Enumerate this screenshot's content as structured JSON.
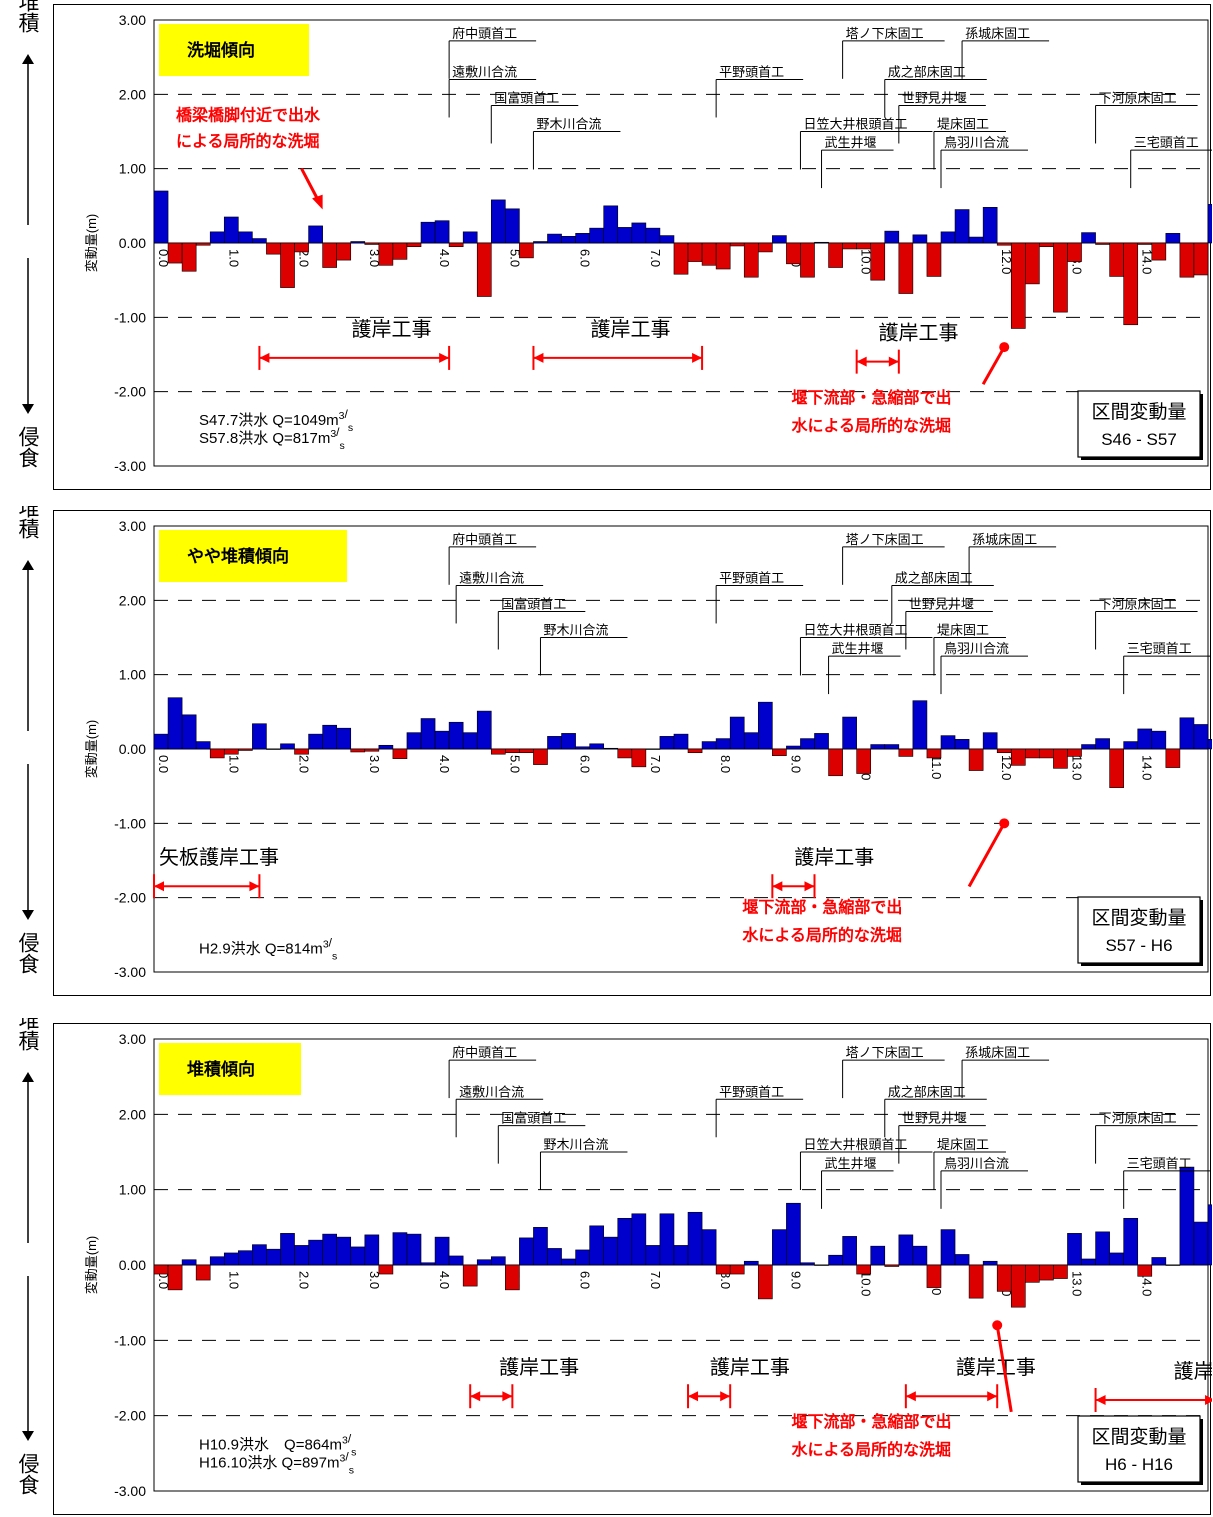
{
  "side_labels": {
    "deposition": "堆積",
    "erosion": "侵食"
  },
  "colors": {
    "positive": "#0000cc",
    "negative": "#dd0000",
    "badge": "#ffff00",
    "annotation": "#ff0000"
  },
  "chart_data": [
    {
      "type": "bar",
      "title": "洗堀傾向",
      "ylabel": "変動量(m)",
      "ylim": [
        -3,
        3
      ],
      "yticks": [
        "3.00",
        "2.00",
        "1.00",
        "0.00",
        "-1.00",
        "-2.00",
        "-3.00"
      ],
      "xlim": [
        0,
        15
      ],
      "xticks": [
        "0.0",
        "1.0",
        "2.0",
        "3.0",
        "4.0",
        "5.0",
        "6.0",
        "7.0",
        "8.0",
        "9.0",
        "10.0",
        "11.0",
        "12.0",
        "13.0",
        "14.0",
        "15.0"
      ],
      "x_start": 0.0,
      "x_step": 0.2,
      "values": [
        0.7,
        -0.27,
        -0.38,
        -0.03,
        0.15,
        0.35,
        0.15,
        0.06,
        -0.15,
        -0.6,
        -0.12,
        0.23,
        -0.33,
        -0.23,
        0.02,
        -0.02,
        -0.3,
        -0.22,
        -0.05,
        0.28,
        0.3,
        -0.05,
        0.15,
        -0.72,
        0.58,
        0.46,
        -0.2,
        0.02,
        0.12,
        0.09,
        0.13,
        0.2,
        0.5,
        0.21,
        0.27,
        0.2,
        0.1,
        -0.42,
        -0.25,
        -0.3,
        -0.35,
        -0.04,
        -0.46,
        -0.12,
        0.1,
        -0.28,
        -0.46,
        0.01,
        -0.33,
        -0.08,
        -0.08,
        -0.5,
        0.16,
        -0.68,
        0.11,
        -0.45,
        0.15,
        0.45,
        0.08,
        0.48,
        -0.03,
        -1.15,
        -0.55,
        -0.05,
        -0.93,
        -0.25,
        0.14,
        -0.02,
        -0.45,
        -1.1,
        -0.02,
        -0.23,
        0.13,
        -0.46,
        -0.43,
        0.52,
        -0.96
      ],
      "structures": [
        {
          "label": "府中頭首工",
          "x": 4.2,
          "level": 1
        },
        {
          "label": "遠敷川合流",
          "x": 4.2,
          "level": 2
        },
        {
          "label": "国富頭首工",
          "x": 4.8,
          "level": 3
        },
        {
          "label": "野木川合流",
          "x": 5.4,
          "level": 4
        },
        {
          "label": "平野頭首工",
          "x": 8.0,
          "level": 2
        },
        {
          "label": "日笠大井根頭首工",
          "x": 9.2,
          "level": 4
        },
        {
          "label": "武生井堰",
          "x": 9.5,
          "level": 5
        },
        {
          "label": "塔ノ下床固工",
          "x": 9.8,
          "level": 1
        },
        {
          "label": "成之部床固工",
          "x": 10.4,
          "level": 2
        },
        {
          "label": "世野見井堰",
          "x": 10.6,
          "level": 3
        },
        {
          "label": "堤床固工",
          "x": 11.1,
          "level": 4
        },
        {
          "label": "鳥羽川合流",
          "x": 11.2,
          "level": 5
        },
        {
          "label": "孫城床固工",
          "x": 11.5,
          "level": 1
        },
        {
          "label": "下河原床固工",
          "x": 13.4,
          "level": 3
        },
        {
          "label": "三宅頭首工",
          "x": 13.9,
          "level": 5
        }
      ],
      "works": [
        {
          "label": "護岸工事",
          "from": 1.5,
          "to": 4.2,
          "lx": 2.1,
          "ly": -1.25
        },
        {
          "label": "護岸工事",
          "from": 5.4,
          "to": 7.8,
          "lx": 5.5,
          "ly": -1.25
        },
        {
          "label": "護岸工事",
          "from": 10.0,
          "to": 10.6,
          "lx": 9.6,
          "ly": -1.3
        }
      ],
      "note_top": "橋梁橋脚付近で出水\nによる局所的な洗堀",
      "note_bottom": "堰下流部・急縮部で出\n水による局所的な洗堀",
      "floods": [
        "S47.7洪水 Q=1049m³/s",
        "S57.8洪水 Q=817m³/s"
      ],
      "section_title": "区間変動量",
      "section_period": "S46 - S57"
    },
    {
      "type": "bar",
      "title": "やや堆積傾向",
      "ylabel": "変動量(m)",
      "ylim": [
        -3,
        3
      ],
      "yticks": [
        "3.00",
        "2.00",
        "1.00",
        "0.00",
        "-1.00",
        "-2.00",
        "-3.00"
      ],
      "xlim": [
        0,
        15
      ],
      "xticks": [
        "0.0",
        "1.0",
        "2.0",
        "3.0",
        "4.0",
        "5.0",
        "6.0",
        "7.0",
        "8.0",
        "9.0",
        "10.0",
        "11.0",
        "12.0",
        "13.0",
        "14.0",
        "15.0"
      ],
      "x_start": 0.0,
      "x_step": 0.2,
      "values": [
        0.2,
        0.69,
        0.46,
        0.1,
        -0.12,
        -0.07,
        -0.02,
        0.34,
        0.0,
        0.07,
        -0.07,
        0.2,
        0.32,
        0.28,
        -0.04,
        -0.03,
        0.05,
        -0.13,
        0.22,
        0.41,
        0.24,
        0.36,
        0.22,
        0.51,
        -0.07,
        -0.05,
        -0.05,
        -0.21,
        0.17,
        0.21,
        0.03,
        0.07,
        0.01,
        -0.12,
        -0.24,
        0.0,
        0.17,
        0.2,
        -0.05,
        0.1,
        0.14,
        0.43,
        0.22,
        0.63,
        -0.09,
        0.04,
        0.14,
        0.21,
        -0.36,
        0.43,
        -0.33,
        0.06,
        0.06,
        -0.1,
        0.65,
        -0.12,
        0.18,
        0.13,
        -0.29,
        0.22,
        -0.05,
        -0.22,
        -0.12,
        -0.12,
        -0.26,
        -0.1,
        0.06,
        0.14,
        -0.52,
        0.1,
        0.27,
        0.24,
        -0.25,
        0.42,
        0.33,
        0.13
      ],
      "structures": [
        {
          "label": "府中頭首工",
          "x": 4.2,
          "level": 1
        },
        {
          "label": "遠敷川合流",
          "x": 4.3,
          "level": 2
        },
        {
          "label": "国富頭首工",
          "x": 4.9,
          "level": 3
        },
        {
          "label": "野木川合流",
          "x": 5.5,
          "level": 4
        },
        {
          "label": "平野頭首工",
          "x": 8.0,
          "level": 2
        },
        {
          "label": "日笠大井根頭首工",
          "x": 9.2,
          "level": 4
        },
        {
          "label": "武生井堰",
          "x": 9.6,
          "level": 5
        },
        {
          "label": "塔ノ下床固工",
          "x": 9.8,
          "level": 1
        },
        {
          "label": "成之部床固工",
          "x": 10.5,
          "level": 2
        },
        {
          "label": "世野見井堰",
          "x": 10.7,
          "level": 3
        },
        {
          "label": "堤床固工",
          "x": 11.1,
          "level": 4
        },
        {
          "label": "鳥羽川合流",
          "x": 11.2,
          "level": 5
        },
        {
          "label": "孫城床固工",
          "x": 11.6,
          "level": 1
        },
        {
          "label": "下河原床固工",
          "x": 13.4,
          "level": 3
        },
        {
          "label": "三宅頭首工",
          "x": 13.8,
          "level": 5
        }
      ],
      "works": [
        {
          "label": "矢板護岸工事",
          "from": 0.0,
          "to": 1.5,
          "lx": 0.0,
          "ly": -1.55
        },
        {
          "label": "護岸工事",
          "from": 8.8,
          "to": 9.4,
          "lx": 8.4,
          "ly": -1.55
        }
      ],
      "note_bottom": "堰下流部・急縮部で出\n水による局所的な洗堀",
      "floods": [
        "H2.9洪水 Q=814m³/s"
      ],
      "section_title": "区間変動量",
      "section_period": "S57 - H6"
    },
    {
      "type": "bar",
      "title": "堆積傾向",
      "ylabel": "変動量(m)",
      "ylim": [
        -3,
        3
      ],
      "yticks": [
        "3.00",
        "2.00",
        "1.00",
        "0.00",
        "-1.00",
        "-2.00",
        "-3.00"
      ],
      "xlim": [
        0,
        15
      ],
      "xticks": [
        "0.0",
        "1.0",
        "2.0",
        "3.0",
        "4.0",
        "5.0",
        "6.0",
        "7.0",
        "8.0",
        "9.0",
        "10.0",
        "11.0",
        "12.0",
        "13.0",
        "14.0",
        "15.0"
      ],
      "x_start": 0.0,
      "x_step": 0.2,
      "values": [
        -0.12,
        -0.33,
        0.07,
        -0.2,
        0.11,
        0.16,
        0.19,
        0.27,
        0.21,
        0.42,
        0.26,
        0.33,
        0.41,
        0.37,
        0.24,
        0.4,
        -0.12,
        0.43,
        0.41,
        0.03,
        0.37,
        0.12,
        -0.28,
        0.07,
        0.11,
        -0.33,
        0.36,
        0.5,
        0.22,
        0.08,
        0.2,
        0.52,
        0.37,
        0.62,
        0.68,
        0.26,
        0.68,
        0.26,
        0.7,
        0.47,
        -0.12,
        -0.12,
        0.05,
        -0.45,
        0.47,
        0.82,
        0.03,
        0.0,
        0.13,
        0.38,
        -0.12,
        0.25,
        -0.02,
        0.4,
        0.25,
        -0.3,
        0.47,
        0.14,
        -0.44,
        0.05,
        -0.35,
        -0.56,
        -0.23,
        -0.2,
        -0.18,
        0.42,
        0.08,
        0.44,
        0.16,
        0.62,
        -0.15,
        0.1,
        0.0,
        1.3,
        0.57,
        0.8,
        0.82
      ],
      "structures": [
        {
          "label": "府中頭首工",
          "x": 4.2,
          "level": 1
        },
        {
          "label": "遠敷川合流",
          "x": 4.3,
          "level": 2
        },
        {
          "label": "国富頭首工",
          "x": 4.9,
          "level": 3
        },
        {
          "label": "野木川合流",
          "x": 5.5,
          "level": 4
        },
        {
          "label": "平野頭首工",
          "x": 8.0,
          "level": 2
        },
        {
          "label": "日笠大井根頭首工",
          "x": 9.2,
          "level": 4
        },
        {
          "label": "武生井堰",
          "x": 9.5,
          "level": 5
        },
        {
          "label": "塔ノ下床固工",
          "x": 9.8,
          "level": 1
        },
        {
          "label": "成之部床固工",
          "x": 10.4,
          "level": 2
        },
        {
          "label": "世野見井堰",
          "x": 10.6,
          "level": 3
        },
        {
          "label": "堤床固工",
          "x": 11.1,
          "level": 4
        },
        {
          "label": "鳥羽川合流",
          "x": 11.2,
          "level": 5
        },
        {
          "label": "孫城床固工",
          "x": 11.5,
          "level": 1
        },
        {
          "label": "下河原床固工",
          "x": 13.4,
          "level": 3
        },
        {
          "label": "三宅頭首工",
          "x": 13.8,
          "level": 5
        }
      ],
      "works": [
        {
          "label": "護岸工事",
          "from": 4.5,
          "to": 5.1,
          "lx": 4.2,
          "ly": -1.45
        },
        {
          "label": "護岸工事",
          "from": 7.6,
          "to": 8.2,
          "lx": 7.2,
          "ly": -1.45
        },
        {
          "label": "護岸工事",
          "from": 10.7,
          "to": 12.0,
          "lx": 10.7,
          "ly": -1.45
        },
        {
          "label": "護岸工事",
          "from": 13.4,
          "to": 15.1,
          "lx": 13.8,
          "ly": -1.5
        }
      ],
      "note_bottom": "堰下流部・急縮部で出\n水による局所的な洗堀",
      "floods": [
        "H10.9洪水　Q=864m³/s",
        "H16.10洪水 Q=897m³/s"
      ],
      "section_title": "区間変動量",
      "section_period": "H6 - H16"
    }
  ]
}
